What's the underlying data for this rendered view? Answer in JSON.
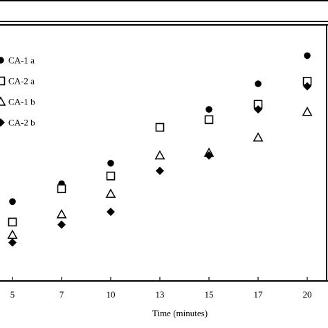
{
  "chart_data": {
    "type": "scatter",
    "title": "",
    "xlabel": "Time (minutes)",
    "ylabel": "",
    "categories": [
      "5",
      "7",
      "10",
      "13",
      "15",
      "17",
      "20"
    ],
    "ylim": [
      0,
      100
    ],
    "grid": false,
    "legend_position": "top-left",
    "series": [
      {
        "name": "CA-1 a",
        "marker": "filled-circle",
        "values": [
          31,
          38,
          46,
          60,
          67,
          77,
          88
        ]
      },
      {
        "name": "CA-2 a",
        "marker": "open-square",
        "values": [
          23,
          36,
          41,
          60,
          63,
          69,
          78
        ]
      },
      {
        "name": "CA-1 b",
        "marker": "open-triangle",
        "values": [
          18,
          26,
          34,
          49,
          50,
          56,
          66
        ]
      },
      {
        "name": "CA-2 b",
        "marker": "filled-diamond",
        "values": [
          15,
          22,
          27,
          43,
          49,
          67,
          76
        ]
      }
    ]
  }
}
